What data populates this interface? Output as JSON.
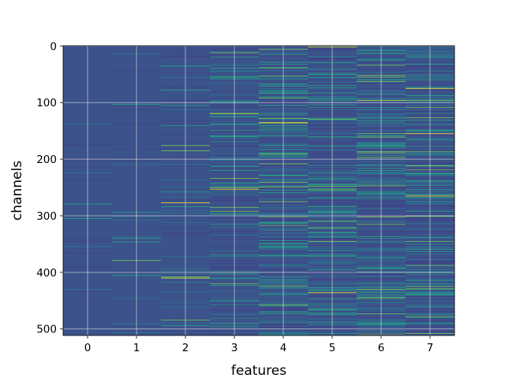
{
  "chart_data": {
    "type": "heatmap",
    "title": "",
    "xlabel": "features",
    "ylabel": "channels",
    "x_categories": [
      "0",
      "1",
      "2",
      "3",
      "4",
      "5",
      "6",
      "7"
    ],
    "y_ticks": [
      0,
      100,
      200,
      300,
      400,
      500
    ],
    "y_range": [
      0,
      511
    ],
    "y_inverted": true,
    "n_channels": 512,
    "grid": true,
    "colormap": "viridis",
    "colors": {
      "background": "#3b528b",
      "dark": "#414487",
      "mid": "#2a788e",
      "bright": "#22a884",
      "highlight": "#7ad151",
      "peak": "#fde725",
      "grid": "#e6e6e6",
      "frame": "#000000"
    }
  }
}
